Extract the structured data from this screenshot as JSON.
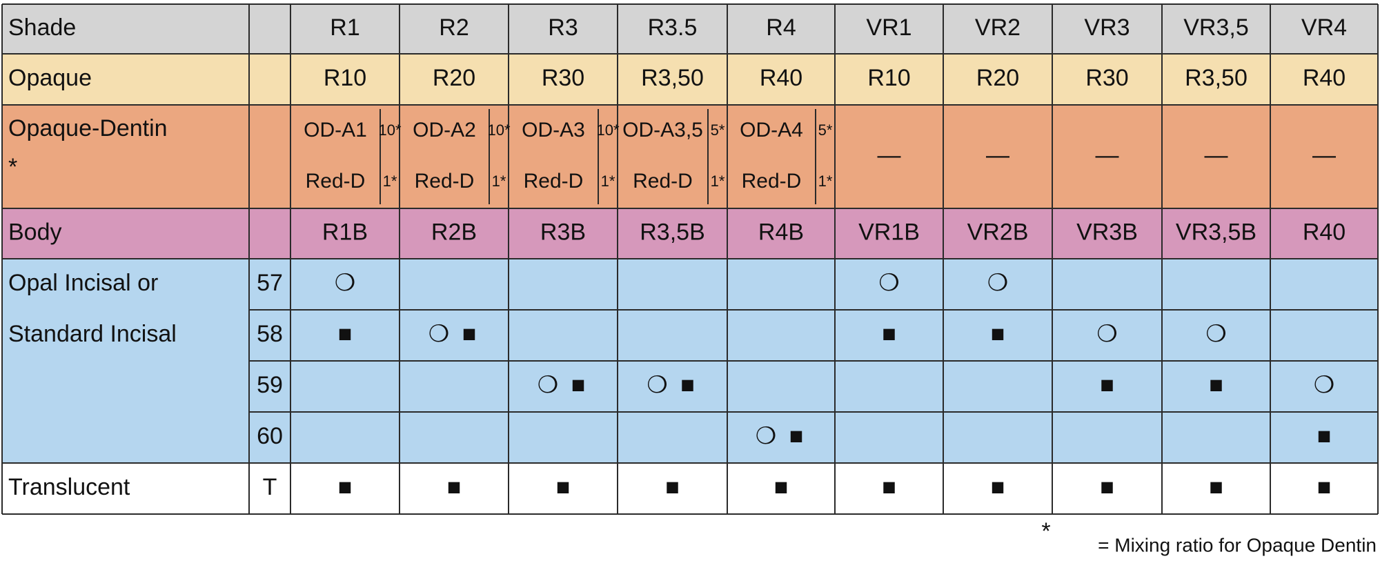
{
  "header": {
    "label": "Shade",
    "columns": [
      "R1",
      "R2",
      "R3",
      "R3.5",
      "R4",
      "VR1",
      "VR2",
      "VR3",
      "VR3,5",
      "VR4"
    ]
  },
  "opaque": {
    "label": "Opaque",
    "values": [
      "R10",
      "R20",
      "R30",
      "R3,50",
      "R40",
      "R10",
      "R20",
      "R30",
      "R3,50",
      "R40"
    ]
  },
  "opaque_dentin": {
    "label": "Opaque-Dentin",
    "star": "*",
    "cells": [
      {
        "name": "OD-A1",
        "ratio": "10*",
        "red": "Red-D",
        "red_ratio": "1*"
      },
      {
        "name": "OD-A2",
        "ratio": "10*",
        "red": "Red-D",
        "red_ratio": "1*"
      },
      {
        "name": "OD-A3",
        "ratio": "10*",
        "red": "Red-D",
        "red_ratio": "1*"
      },
      {
        "name": "OD-A3,5",
        "ratio": "5*",
        "red": "Red-D",
        "red_ratio": "1*"
      },
      {
        "name": "OD-A4",
        "ratio": "5*",
        "red": "Red-D",
        "red_ratio": "1*"
      },
      "—",
      "—",
      "—",
      "—",
      "—"
    ]
  },
  "body": {
    "label": "Body",
    "values": [
      "R1B",
      "R2B",
      "R3B",
      "R3,5B",
      "R4B",
      "VR1B",
      "VR2B",
      "VR3B",
      "VR3,5B",
      "R40"
    ]
  },
  "incisal": {
    "label_lines": [
      "Opal Incisal or",
      "Standard Incisal"
    ],
    "rows": [
      {
        "number": "57",
        "marks": [
          [
            "❍"
          ],
          [],
          [],
          [],
          [],
          [
            "❍"
          ],
          [
            "❍"
          ],
          [],
          [],
          []
        ]
      },
      {
        "number": "58",
        "marks": [
          [
            "■"
          ],
          [
            "❍",
            "■"
          ],
          [],
          [],
          [],
          [
            "■"
          ],
          [
            "■"
          ],
          [
            "❍"
          ],
          [
            "❍"
          ],
          []
        ]
      },
      {
        "number": "59",
        "marks": [
          [],
          [],
          [
            "❍",
            "■"
          ],
          [
            "❍",
            "■"
          ],
          [],
          [],
          [],
          [
            "■"
          ],
          [
            "■"
          ],
          [
            "❍"
          ]
        ]
      },
      {
        "number": "60",
        "marks": [
          [],
          [],
          [],
          [],
          [
            "❍",
            "■"
          ],
          [],
          [],
          [],
          [],
          [
            "■"
          ]
        ]
      }
    ]
  },
  "translucent": {
    "label": "Translucent",
    "code": "T",
    "marks": [
      "■",
      "■",
      "■",
      "■",
      "■",
      "■",
      "■",
      "■",
      "■",
      "■"
    ]
  },
  "footnote": {
    "star": "*",
    "text": "= Mixing ratio for Opaque Dentin"
  }
}
